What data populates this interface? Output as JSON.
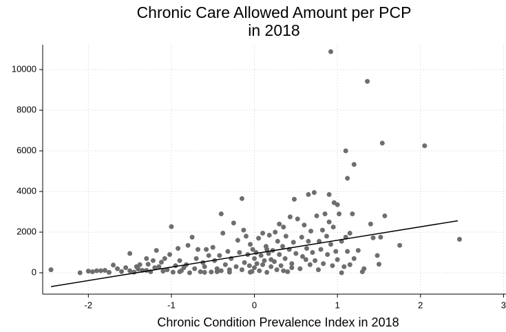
{
  "chart_data": {
    "type": "scatter",
    "title": [
      "Chronic Care Allowed Amount per PCP",
      "in 2018"
    ],
    "x_label": "Chronic Condition Prevalence Index in 2018",
    "xlim": [
      -2.55,
      3.03
    ],
    "ylim": [
      -1050,
      11220
    ],
    "xticks": [
      -2,
      -1,
      0,
      1,
      2,
      3
    ],
    "yticks": [
      0,
      2000,
      4000,
      6000,
      8000,
      10000
    ],
    "grid": true,
    "series": [
      {
        "type": "scatter",
        "color": "#6e6e6e",
        "x": [
          -2.45,
          -2.1,
          -2.0,
          -1.95,
          -1.85,
          -1.8,
          -1.75,
          -1.7,
          -1.65,
          -1.6,
          -1.55,
          -1.5,
          -1.5,
          -1.45,
          -1.42,
          -1.4,
          -1.38,
          -1.35,
          -1.3,
          -1.28,
          -1.25,
          -1.22,
          -1.2,
          -1.18,
          -1.15,
          -1.12,
          -1.1,
          -1.08,
          -1.05,
          -1.02,
          -1.0,
          -0.98,
          -0.95,
          -0.92,
          -0.9,
          -0.88,
          -0.85,
          -0.82,
          -0.8,
          -0.78,
          -0.75,
          -0.72,
          -0.7,
          -0.68,
          -0.65,
          -0.62,
          -0.6,
          -0.58,
          -0.55,
          -0.52,
          -0.5,
          -0.48,
          -0.45,
          -0.42,
          -0.4,
          -0.4,
          -0.38,
          -0.35,
          -0.32,
          -0.3,
          -0.28,
          -0.25,
          -0.22,
          -0.2,
          -0.18,
          -0.15,
          -0.15,
          -0.13,
          -0.12,
          -0.1,
          -0.08,
          -0.06,
          -0.05,
          -0.03,
          -0.02,
          0.0,
          0.0,
          0.02,
          0.03,
          0.05,
          0.06,
          0.08,
          0.1,
          0.1,
          0.12,
          0.14,
          0.15,
          0.17,
          0.18,
          0.2,
          0.22,
          0.24,
          0.25,
          0.27,
          0.28,
          0.3,
          0.3,
          0.32,
          0.34,
          0.35,
          0.37,
          0.38,
          0.4,
          0.42,
          0.43,
          0.45,
          0.47,
          0.48,
          0.5,
          0.52,
          0.55,
          0.57,
          0.58,
          0.6,
          0.62,
          0.63,
          0.65,
          0.67,
          0.68,
          0.7,
          0.72,
          0.73,
          0.75,
          0.77,
          0.78,
          0.8,
          0.82,
          0.83,
          0.85,
          0.87,
          0.88,
          0.9,
          0.9,
          0.92,
          0.92,
          0.94,
          0.95,
          0.96,
          0.98,
          1.0,
          1.0,
          1.02,
          1.05,
          1.05,
          1.08,
          1.1,
          1.1,
          1.12,
          1.12,
          1.15,
          1.15,
          1.18,
          1.2,
          1.2,
          1.25,
          1.3,
          1.32,
          1.36,
          1.4,
          1.43,
          1.48,
          1.5,
          1.52,
          1.54,
          1.57,
          1.75,
          2.05,
          2.47,
          -1.9,
          -0.3,
          -0.6,
          -0.9,
          -1.3,
          0.2,
          0.45,
          0.65,
          0.15,
          -0.05,
          0.35,
          -0.45
        ],
        "y": [
          150,
          0,
          80,
          50,
          100,
          120,
          20,
          380,
          200,
          60,
          250,
          950,
          100,
          30,
          300,
          180,
          400,
          120,
          700,
          420,
          50,
          600,
          250,
          1100,
          300,
          520,
          80,
          700,
          150,
          900,
          2270,
          30,
          350,
          1200,
          600,
          100,
          250,
          400,
          1350,
          0,
          1750,
          200,
          700,
          1150,
          50,
          500,
          300,
          1150,
          850,
          40,
          1250,
          600,
          200,
          850,
          2900,
          100,
          1950,
          400,
          1050,
          30,
          700,
          2450,
          300,
          1600,
          1000,
          3650,
          150,
          2100,
          500,
          1800,
          900,
          350,
          1400,
          60,
          1150,
          700,
          250,
          1000,
          450,
          1700,
          100,
          850,
          1950,
          400,
          600,
          1300,
          20,
          950,
          1850,
          300,
          1100,
          550,
          2000,
          150,
          1550,
          900,
          2400,
          350,
          1300,
          2250,
          700,
          1800,
          50,
          1150,
          2750,
          450,
          1500,
          3620,
          950,
          2650,
          200,
          1750,
          800,
          2350,
          650,
          1200,
          3850,
          400,
          2050,
          1000,
          3950,
          600,
          2800,
          150,
          1550,
          1150,
          2100,
          450,
          2900,
          1800,
          900,
          3850,
          2500,
          10880,
          1400,
          350,
          2250,
          3450,
          1050,
          3350,
          650,
          2900,
          1550,
          0,
          300,
          6000,
          1750,
          4650,
          1050,
          400,
          1950,
          2900,
          5330,
          700,
          1100,
          50,
          200,
          9420,
          2400,
          1720,
          850,
          420,
          1750,
          6380,
          2800,
          1350,
          6250,
          1650,
          100,
          150,
          20,
          50,
          120,
          650,
          250,
          1550,
          1150,
          30,
          100,
          50
        ]
      },
      {
        "type": "line",
        "color": "#000000",
        "x": [
          -2.45,
          2.45
        ],
        "y": [
          -680,
          2560
        ]
      }
    ]
  }
}
